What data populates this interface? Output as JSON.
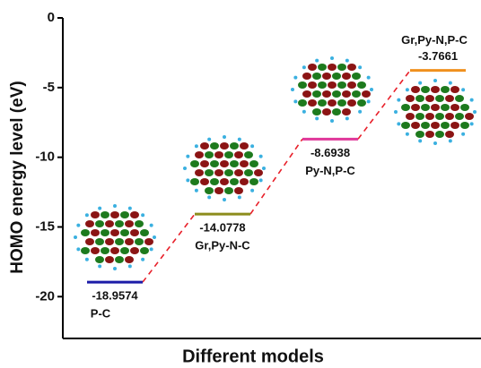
{
  "chart_data": {
    "type": "level",
    "xlabel": "Different models",
    "ylabel": "HOMO energy level (eV)",
    "categories": [
      "P-C",
      "Gr,Py-N-C",
      "Py-N,P-C",
      "Gr,Py-N,P-C"
    ],
    "values": [
      -18.9574,
      -14.0778,
      -8.6938,
      -3.7661
    ],
    "colors": [
      "#1c1ca8",
      "#8c8c1c",
      "#e0379a",
      "#f0901e"
    ],
    "connector_color": "#e8202a",
    "ylim": [
      -23,
      0
    ],
    "yticks": [
      0,
      -5,
      -10,
      -15,
      -20
    ]
  }
}
